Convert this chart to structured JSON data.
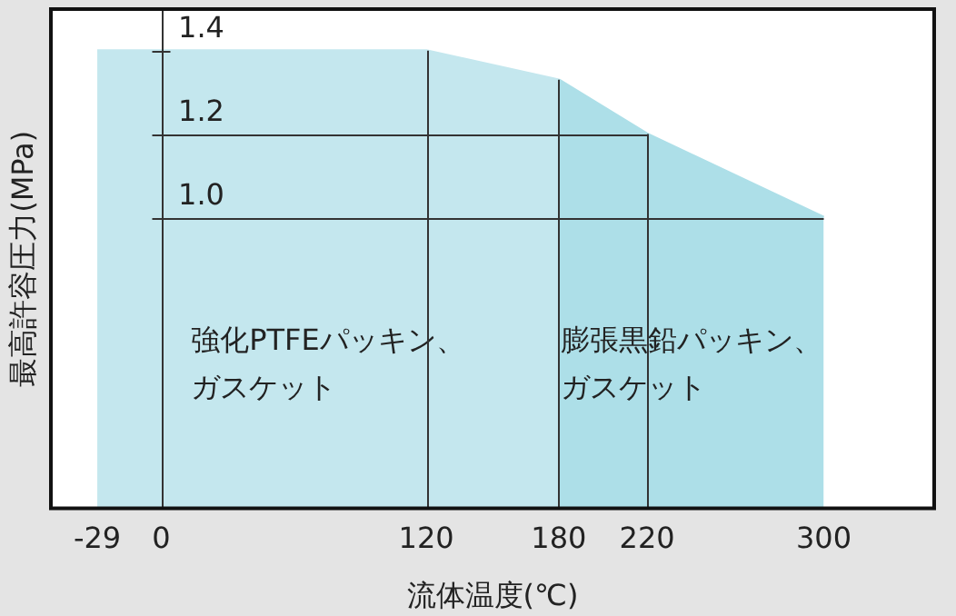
{
  "chart_data": {
    "type": "area",
    "xlabel": "流体温度(℃)",
    "ylabel": "最高許容圧力(MPa)",
    "xlim": [
      -50,
      350
    ],
    "xticks": [
      -29,
      0,
      120,
      180,
      220,
      300
    ],
    "ylim": [
      0.3,
      1.5
    ],
    "yticks": [
      {
        "value": 1,
        "label": "1.0"
      },
      1.2,
      1.4
    ],
    "grid": "x",
    "ref_lines": [
      {
        "axis": "y",
        "value": 1.0,
        "color": "#333333"
      },
      {
        "axis": "y",
        "value": 1.2,
        "color": "#333333"
      }
    ],
    "series": [
      {
        "name": "強化PTFEパッキン、ガスケット",
        "color": "#c4e7ee",
        "x": [
          -29,
          120,
          180
        ],
        "values": [
          1.4,
          1.4,
          1.33
        ]
      },
      {
        "name": "膨張黒鉛パッキン、ガスケット",
        "color": "#addfe8",
        "x": [
          180,
          220,
          300
        ],
        "values": [
          1.33,
          1.2,
          1.0
        ]
      }
    ]
  }
}
